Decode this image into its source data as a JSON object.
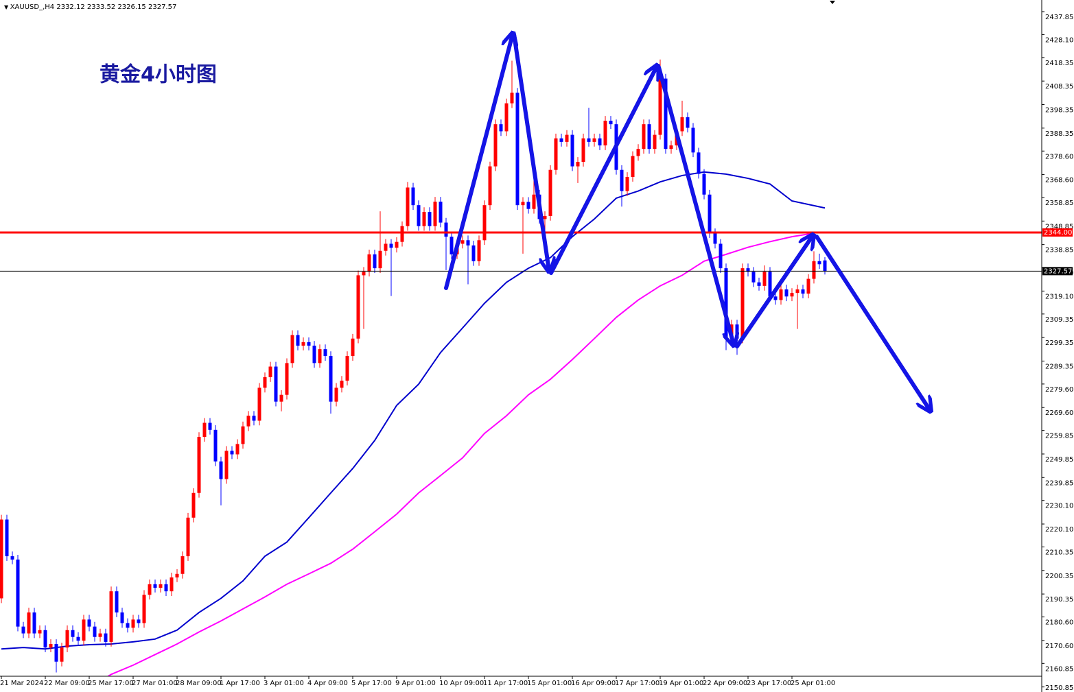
{
  "chart_data": {
    "type": "candlestick",
    "symbol": "XAUUSD_,H4",
    "title": "黄金4小时图",
    "up_color": "#ff0000",
    "down_color": "#0000ff",
    "ylim": [
      2148.7,
      2442.8
    ],
    "yticks": [
      2437.85,
      {
        "value": 2428.1,
        "label": "2428.10"
      },
      2418.35,
      2408.35,
      2398.35,
      2388.35,
      {
        "value": 2378.6,
        "label": "2378.60"
      },
      {
        "value": 2368.6,
        "label": "2368.60"
      },
      2358.85,
      2348.85,
      2338.85,
      {
        "value": 2329.1,
        "label": "2329.10"
      },
      {
        "value": 2319.1,
        "label": "2319.10"
      },
      2309.35,
      2299.35,
      2289.35,
      {
        "value": 2279.6,
        "label": "2279.60"
      },
      {
        "value": 2269.6,
        "label": "2269.60"
      },
      2259.85,
      2249.85,
      2239.85,
      {
        "value": 2230.1,
        "label": "2230.10"
      },
      {
        "value": 2220.1,
        "label": "2220.10"
      },
      2210.35,
      2200.35,
      2190.35,
      {
        "value": 2180.6,
        "label": "2180.60"
      },
      {
        "value": 2170.6,
        "label": "2170.60"
      },
      2160.85,
      2150.85
    ],
    "levels": [
      {
        "value": 2344,
        "label": "2344.00",
        "color": "#ff0000"
      }
    ],
    "categories": [
      "21 Mar 2024",
      null,
      null,
      null,
      null,
      null,
      null,
      null,
      "22 Mar 09:00",
      null,
      null,
      null,
      null,
      null,
      null,
      null,
      "25 Mar 17:00",
      null,
      null,
      null,
      null,
      null,
      null,
      null,
      "27 Mar 01:00",
      null,
      null,
      null,
      null,
      null,
      null,
      null,
      "28 Mar 09:00",
      null,
      null,
      null,
      null,
      null,
      null,
      null,
      "1 Apr 17:00",
      null,
      null,
      null,
      null,
      null,
      null,
      null,
      "3 Apr 01:00",
      null,
      null,
      null,
      null,
      null,
      null,
      null,
      "4 Apr 09:00",
      null,
      null,
      null,
      null,
      null,
      null,
      null,
      "5 Apr 17:00",
      null,
      null,
      null,
      null,
      null,
      null,
      null,
      "9 Apr 01:00",
      null,
      null,
      null,
      null,
      null,
      null,
      null,
      "10 Apr 09:00",
      null,
      null,
      null,
      null,
      null,
      null,
      null,
      "11 Apr 17:00",
      null,
      null,
      null,
      null,
      null,
      null,
      null,
      "15 Apr 01:00",
      null,
      null,
      null,
      null,
      null,
      null,
      null,
      "16 Apr 09:00",
      null,
      null,
      null,
      null,
      null,
      null,
      null,
      "17 Apr 17:00",
      null,
      null,
      null,
      null,
      null,
      null,
      null,
      "19 Apr 01:00",
      null,
      null,
      null,
      null,
      null,
      null,
      null,
      "22 Apr 09:00",
      null,
      null,
      null,
      null,
      null,
      null,
      null,
      "23 Apr 17:00",
      null,
      null,
      null,
      null,
      null,
      null,
      null,
      "25 Apr 01:00",
      null,
      null,
      null,
      null,
      null,
      null
    ],
    "candles": [
      [
        2188.5,
        2224.0,
        2186.5,
        2222.0
      ],
      [
        2222.0,
        2224.0,
        2204.4,
        2206.4
      ],
      [
        2206.4,
        2208.4,
        2203.0,
        2205.0
      ],
      [
        2205.0,
        2207.0,
        2174.5,
        2176.5
      ],
      [
        2176.5,
        2178.5,
        2171.6,
        2173.6
      ],
      [
        2173.6,
        2184.5,
        2171.6,
        2182.5
      ],
      [
        2182.5,
        2184.5,
        2171.6,
        2173.6
      ],
      [
        2173.6,
        2177.0,
        2171.6,
        2175.0
      ],
      [
        2175.0,
        2177.0,
        2165.6,
        2167.6
      ],
      [
        2167.6,
        2171.1,
        2165.6,
        2169.1
      ],
      [
        2169.1,
        2171.1,
        2157.0,
        2161.6
      ],
      [
        2161.6,
        2169.6,
        2159.6,
        2167.6
      ],
      [
        2167.6,
        2177.0,
        2165.6,
        2175.0
      ],
      [
        2175.0,
        2177.0,
        2170.1,
        2172.1
      ],
      [
        2172.1,
        2174.1,
        2168.5,
        2170.5
      ],
      [
        2170.5,
        2181.5,
        2168.5,
        2179.5
      ],
      [
        2179.5,
        2181.5,
        2174.5,
        2176.5
      ],
      [
        2176.5,
        2178.5,
        2170.1,
        2172.1
      ],
      [
        2172.1,
        2175.6,
        2170.1,
        2173.6
      ],
      [
        2173.6,
        2175.6,
        2168.0,
        2170.0
      ],
      [
        2170.0,
        2193.5,
        2168.0,
        2191.5
      ],
      [
        2191.5,
        2193.5,
        2180.5,
        2182.5
      ],
      [
        2182.5,
        2184.5,
        2176.0,
        2178.0
      ],
      [
        2178.0,
        2180.0,
        2174.0,
        2176.0
      ],
      [
        2176.0,
        2181.5,
        2174.0,
        2179.5
      ],
      [
        2179.5,
        2181.5,
        2176.0,
        2178.0
      ],
      [
        2178.0,
        2192.0,
        2176.0,
        2190.0
      ],
      [
        2190.0,
        2196.5,
        2188.0,
        2194.5
      ],
      [
        2194.5,
        2196.5,
        2191.0,
        2193.0
      ],
      [
        2193.0,
        2196.5,
        2191.0,
        2194.5
      ],
      [
        2194.5,
        2196.5,
        2189.5,
        2191.5
      ],
      [
        2191.5,
        2199.4,
        2189.5,
        2197.4
      ],
      [
        2197.4,
        2200.9,
        2195.4,
        2198.9
      ],
      [
        2198.9,
        2208.4,
        2196.9,
        2206.4
      ],
      [
        2206.4,
        2224.8,
        2204.4,
        2222.8
      ],
      [
        2222.8,
        2235.3,
        2220.8,
        2233.3
      ],
      [
        2233.3,
        2259.1,
        2231.3,
        2257.1
      ],
      [
        2257.1,
        2265.1,
        2255.1,
        2263.1
      ],
      [
        2263.1,
        2265.1,
        2258.1,
        2260.1
      ],
      [
        2260.1,
        2262.1,
        2244.7,
        2246.7
      ],
      [
        2246.7,
        2248.7,
        2228.0,
        2239.2
      ],
      [
        2239.2,
        2253.2,
        2237.2,
        2251.2
      ],
      [
        2251.2,
        2253.2,
        2247.7,
        2249.7
      ],
      [
        2249.7,
        2256.1,
        2247.7,
        2254.1
      ],
      [
        2254.1,
        2263.6,
        2252.1,
        2261.6
      ],
      [
        2261.6,
        2268.1,
        2259.6,
        2266.1
      ],
      [
        2266.1,
        2268.1,
        2262.0,
        2264.0
      ],
      [
        2264.0,
        2280.0,
        2262.0,
        2278.0
      ],
      [
        2278.0,
        2284.5,
        2276.0,
        2282.5
      ],
      [
        2282.5,
        2289.0,
        2280.5,
        2287.0
      ],
      [
        2287.0,
        2289.0,
        2270.1,
        2272.1
      ],
      [
        2272.1,
        2277.0,
        2268.0,
        2275.0
      ],
      [
        2275.0,
        2290.5,
        2273.0,
        2288.5
      ],
      [
        2288.5,
        2302.4,
        2286.5,
        2300.4
      ],
      [
        2300.4,
        2302.4,
        2293.9,
        2295.9
      ],
      [
        2295.9,
        2299.4,
        2293.9,
        2297.4
      ],
      [
        2297.4,
        2299.4,
        2293.9,
        2295.9
      ],
      [
        2295.9,
        2297.9,
        2286.5,
        2288.5
      ],
      [
        2288.5,
        2296.4,
        2286.5,
        2294.4
      ],
      [
        2294.4,
        2296.4,
        2289.5,
        2291.5
      ],
      [
        2291.5,
        2293.5,
        2267.0,
        2272.1
      ],
      [
        2272.1,
        2280.0,
        2270.1,
        2278.0
      ],
      [
        2278.0,
        2283.0,
        2276.0,
        2281.0
      ],
      [
        2281.0,
        2293.5,
        2279.0,
        2291.5
      ],
      [
        2291.5,
        2300.9,
        2289.5,
        2298.9
      ],
      [
        2298.9,
        2327.8,
        2296.9,
        2325.8
      ],
      [
        2325.8,
        2329.3,
        2303.0,
        2327.3
      ],
      [
        2327.3,
        2336.7,
        2325.3,
        2334.7
      ],
      [
        2334.7,
        2336.7,
        2326.8,
        2328.8
      ],
      [
        2328.8,
        2353.0,
        2326.8,
        2336.2
      ],
      [
        2336.2,
        2341.2,
        2334.2,
        2339.2
      ],
      [
        2339.2,
        2341.2,
        2317.0,
        2337.5
      ],
      [
        2337.5,
        2342.0,
        2335.5,
        2340.0
      ],
      [
        2340.0,
        2348.7,
        2338.0,
        2346.7
      ],
      [
        2346.7,
        2365.5,
        2344.7,
        2363.1
      ],
      [
        2363.1,
        2365.1,
        2353.6,
        2355.6
      ],
      [
        2355.6,
        2357.6,
        2344.7,
        2346.7
      ],
      [
        2346.7,
        2354.7,
        2344.7,
        2352.7
      ],
      [
        2352.7,
        2354.7,
        2344.7,
        2346.7
      ],
      [
        2346.7,
        2359.1,
        2344.7,
        2357.1
      ],
      [
        2357.1,
        2359.1,
        2346.2,
        2348.2
      ],
      [
        2348.2,
        2350.2,
        2328.0,
        2342.2
      ],
      [
        2342.2,
        2344.2,
        2332.7,
        2334.7
      ],
      [
        2334.7,
        2341.2,
        2332.7,
        2339.2
      ],
      [
        2339.2,
        2342.7,
        2337.2,
        2340.7
      ],
      [
        2340.7,
        2342.7,
        2322.0,
        2338.5
      ],
      [
        2338.5,
        2340.5,
        2329.8,
        2331.8
      ],
      [
        2331.8,
        2342.7,
        2329.8,
        2340.7
      ],
      [
        2340.7,
        2357.6,
        2338.7,
        2355.6
      ],
      [
        2355.6,
        2374.1,
        2353.6,
        2372.1
      ],
      [
        2372.1,
        2392.0,
        2370.1,
        2390.0
      ],
      [
        2390.0,
        2392.0,
        2385.0,
        2387.0
      ],
      [
        2387.0,
        2400.9,
        2385.0,
        2398.9
      ],
      [
        2398.9,
        2417.0,
        2396.9,
        2403.4
      ],
      [
        2403.4,
        2405.4,
        2353.6,
        2355.6
      ],
      [
        2355.6,
        2359.0,
        2335.0,
        2357.0
      ],
      [
        2357.0,
        2359.0,
        2352.0,
        2354.0
      ],
      [
        2354.0,
        2372.0,
        2352.0,
        2360.1
      ],
      [
        2360.1,
        2362.1,
        2347.7,
        2349.7
      ],
      [
        2349.7,
        2353.0,
        2340.0,
        2351.0
      ],
      [
        2351.0,
        2372.6,
        2349.0,
        2370.6
      ],
      [
        2370.6,
        2386.0,
        2368.6,
        2384.0
      ],
      [
        2384.0,
        2386.0,
        2380.5,
        2382.5
      ],
      [
        2382.5,
        2387.5,
        2380.5,
        2385.5
      ],
      [
        2385.5,
        2387.5,
        2370.1,
        2372.1
      ],
      [
        2372.1,
        2376.0,
        2365.0,
        2374.0
      ],
      [
        2374.0,
        2386.0,
        2372.0,
        2384.0
      ],
      [
        2384.0,
        2397.0,
        2380.5,
        2382.5
      ],
      [
        2382.5,
        2386.0,
        2380.5,
        2384.0
      ],
      [
        2384.0,
        2386.0,
        2379.0,
        2381.0
      ],
      [
        2381.0,
        2393.5,
        2379.0,
        2391.5
      ],
      [
        2391.5,
        2393.5,
        2388.0,
        2390.0
      ],
      [
        2390.0,
        2392.0,
        2368.6,
        2370.6
      ],
      [
        2370.6,
        2372.6,
        2355.0,
        2361.6
      ],
      [
        2361.6,
        2369.6,
        2359.6,
        2367.6
      ],
      [
        2367.6,
        2378.5,
        2365.6,
        2376.5
      ],
      [
        2376.5,
        2381.5,
        2374.5,
        2379.5
      ],
      [
        2379.5,
        2392.0,
        2377.5,
        2390.0
      ],
      [
        2390.0,
        2392.0,
        2377.5,
        2379.5
      ],
      [
        2379.5,
        2387.5,
        2377.5,
        2385.5
      ],
      [
        2385.5,
        2417.5,
        2383.5,
        2409.4
      ],
      [
        2409.4,
        2411.4,
        2377.5,
        2379.5
      ],
      [
        2379.5,
        2383.0,
        2377.5,
        2381.0
      ],
      [
        2381.0,
        2389.0,
        2379.0,
        2387.0
      ],
      [
        2387.0,
        2400.0,
        2385.0,
        2393.0
      ],
      [
        2393.0,
        2395.0,
        2386.5,
        2388.5
      ],
      [
        2388.5,
        2390.5,
        2376.0,
        2378.0
      ],
      [
        2378.0,
        2380.0,
        2366.9,
        2368.9
      ],
      [
        2368.9,
        2370.9,
        2358.1,
        2360.1
      ],
      [
        2360.1,
        2362.1,
        2341.7,
        2343.7
      ],
      [
        2343.7,
        2345.7,
        2337.2,
        2339.2
      ],
      [
        2339.2,
        2341.2,
        2326.8,
        2328.8
      ],
      [
        2328.8,
        2330.8,
        2294.0,
        2298.9
      ],
      [
        2298.9,
        2306.9,
        2296.9,
        2304.9
      ],
      [
        2304.9,
        2306.9,
        2292.0,
        2298.9
      ],
      [
        2298.9,
        2330.8,
        2296.9,
        2328.8
      ],
      [
        2328.8,
        2330.8,
        2325.3,
        2327.3
      ],
      [
        2327.3,
        2329.3,
        2320.8,
        2322.8
      ],
      [
        2322.8,
        2324.8,
        2319.3,
        2321.3
      ],
      [
        2321.3,
        2330.0,
        2319.3,
        2327.3
      ],
      [
        2327.3,
        2329.3,
        2314.8,
        2316.8
      ],
      [
        2316.8,
        2318.8,
        2313.3,
        2315.3
      ],
      [
        2315.3,
        2321.8,
        2313.3,
        2319.8
      ],
      [
        2319.8,
        2321.8,
        2314.8,
        2316.8
      ],
      [
        2316.8,
        2320.3,
        2314.8,
        2318.3
      ],
      [
        2318.3,
        2321.8,
        2303.0,
        2319.8
      ],
      [
        2319.8,
        2321.8,
        2316.0,
        2318.0
      ],
      [
        2318.0,
        2326.3,
        2316.0,
        2324.3
      ],
      [
        2324.3,
        2336.0,
        2322.3,
        2331.8
      ],
      [
        2331.8,
        2335.0,
        2328.5,
        2330.5
      ],
      [
        2332.12,
        2333.52,
        2326.15,
        2327.57
      ]
    ],
    "ma": [
      {
        "color": "#0000cd",
        "x": [
          0,
          4,
          8,
          12,
          16,
          20,
          24,
          28,
          32,
          36,
          40,
          44,
          48,
          52,
          56,
          60,
          64,
          68,
          72,
          76,
          80,
          84,
          88,
          92,
          96,
          100,
          104,
          108,
          112,
          116,
          120,
          124,
          128,
          132,
          136,
          140,
          144,
          150
        ],
        "values": [
          2167.0,
          2167.6,
          2167.0,
          2168.2,
          2168.8,
          2169.1,
          2170.0,
          2171.2,
          2175.0,
          2182.5,
          2188.5,
          2195.9,
          2206.4,
          2212.4,
          2222.8,
          2233.3,
          2243.7,
          2255.6,
          2270.5,
          2279.5,
          2293.0,
          2303.4,
          2313.9,
          2322.8,
          2328.8,
          2333.3,
          2342.2,
          2349.7,
          2358.6,
          2361.6,
          2365.5,
          2368.2,
          2369.7,
          2368.8,
          2367.0,
          2364.6,
          2357.4,
          2354.4
        ]
      },
      {
        "color": "#ff00ff",
        "x": [
          12,
          16,
          20,
          24,
          28,
          32,
          36,
          40,
          44,
          48,
          52,
          56,
          60,
          64,
          68,
          72,
          76,
          80,
          84,
          88,
          92,
          96,
          100,
          104,
          108,
          112,
          116,
          120,
          124,
          128,
          132,
          136,
          140,
          144,
          148
        ],
        "values": [
          2146.0,
          2150.3,
          2156.2,
          2160.1,
          2164.6,
          2169.1,
          2174.2,
          2178.9,
          2184.0,
          2189.1,
          2194.5,
          2198.9,
          2203.4,
          2209.4,
          2216.8,
          2224.3,
          2233.3,
          2240.7,
          2248.2,
          2258.6,
          2266.1,
          2275.0,
          2281.6,
          2290.0,
          2298.9,
          2307.9,
          2315.3,
          2321.3,
          2325.8,
          2331.8,
          2334.7,
          2337.7,
          2340.1,
          2342.2,
          2343.7
        ]
      }
    ]
  }
}
